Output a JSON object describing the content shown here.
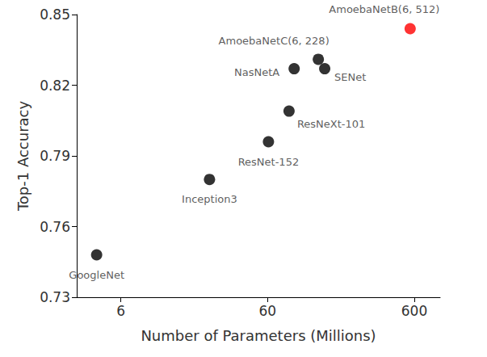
{
  "chart_data": {
    "type": "scatter",
    "x_label": "Number of Parameters (Millions)",
    "y_label": "Top-1 Accuracy",
    "point_labels": [
      "GoogleNet",
      "Inception3",
      "ResNet-152",
      "ResNeXt-101",
      "NasNetA",
      "AmoebaNetC(6, 228)",
      "SENet",
      "AmoebaNetB(6, 512)"
    ],
    "x": [
      4.1,
      24.1,
      60.8,
      84,
      91,
      133,
      147,
      562
    ],
    "values": [
      0.748,
      0.78,
      0.796,
      0.809,
      0.827,
      0.831,
      0.827,
      0.844
    ],
    "colors": [
      "#000000",
      "#000000",
      "#000000",
      "#000000",
      "#000000",
      "#000000",
      "#000000",
      "#ff0000"
    ],
    "xlim": [
      3,
      900
    ],
    "xticks": [
      6,
      60,
      600
    ],
    "ylim": [
      0.73,
      0.85
    ],
    "yticks": [
      0.73,
      0.76,
      0.79,
      0.82,
      0.85
    ],
    "log": "x",
    "grid": false,
    "marker": "circle"
  }
}
